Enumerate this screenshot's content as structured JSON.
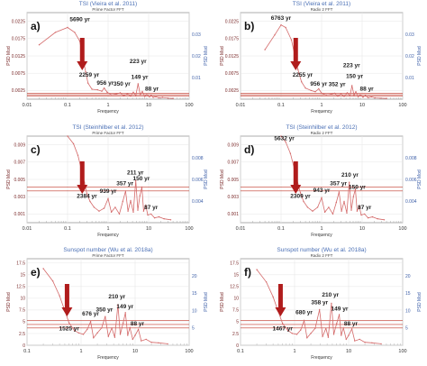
{
  "colors": {
    "series": "#d46a6a",
    "grid": "#e6e6e6",
    "frame": "#999999",
    "refline": "#c0392b",
    "arrow": "#b01c1c",
    "title": "#4a6fb5",
    "axis_text": "#7a2a2a",
    "right_axis_text": "#3d5fa8"
  },
  "chart_data": [
    {
      "type": "line",
      "panel_label": "a)",
      "title": "TSI (Vieira et al. 2011)",
      "subtitle": "Prime Factor FFT",
      "xlabel": "Frequency",
      "ylabel": "PSD Mod",
      "xscale": "log",
      "xlim": [
        0.01,
        100
      ],
      "x_ticks": [
        "0.01",
        "0.1",
        "1",
        "10",
        "100"
      ],
      "ylim": [
        0,
        0.035
      ],
      "y_ticks": [
        "0.0025",
        "0.0075",
        "0.0125",
        "0.0175",
        "0.0225"
      ],
      "right_y_ticks": [
        "0.01",
        "0.02",
        "0.03"
      ],
      "reference_lines": [
        0.0012,
        0.0018,
        0.0024
      ],
      "arrow_x": 0.23,
      "annotations": [
        {
          "text": "5690 yr",
          "x": 0.2,
          "y": 0.0315
        },
        {
          "text": "2259 yr",
          "x": 0.34,
          "y": 0.0092
        },
        {
          "text": "956 yr",
          "x": 0.85,
          "y": 0.0058
        },
        {
          "text": "350 yr",
          "x": 2.2,
          "y": 0.0055
        },
        {
          "text": "223 yr",
          "x": 5.5,
          "y": 0.0145
        },
        {
          "text": "149 yr",
          "x": 6.0,
          "y": 0.0082
        },
        {
          "text": "88 yr",
          "x": 12.0,
          "y": 0.0035
        }
      ],
      "points": [
        [
          0.02,
          0.022
        ],
        [
          0.05,
          0.027
        ],
        [
          0.1,
          0.029
        ],
        [
          0.15,
          0.027
        ],
        [
          0.2,
          0.0235
        ],
        [
          0.28,
          0.011
        ],
        [
          0.32,
          0.0065
        ],
        [
          0.4,
          0.004
        ],
        [
          0.55,
          0.0038
        ],
        [
          0.7,
          0.0032
        ],
        [
          0.8,
          0.0045
        ],
        [
          0.95,
          0.0028
        ],
        [
          1.2,
          0.0018
        ],
        [
          1.6,
          0.0021
        ],
        [
          2,
          0.0026
        ],
        [
          2.4,
          0.0013
        ],
        [
          3,
          0.0022
        ],
        [
          3.6,
          0.0012
        ],
        [
          4.2,
          0.0028
        ],
        [
          4.8,
          0.0014
        ],
        [
          5.5,
          0.0062
        ],
        [
          6.2,
          0.0018
        ],
        [
          7,
          0.0031
        ],
        [
          8,
          0.0011
        ],
        [
          9,
          0.0019
        ],
        [
          10.5,
          0.0009
        ],
        [
          11.5,
          0.0016
        ],
        [
          13,
          0.0007
        ],
        [
          15,
          0.001
        ],
        [
          18,
          0.0005
        ],
        [
          22,
          0.0007
        ],
        [
          30,
          0.0004
        ],
        [
          40,
          0.0003
        ]
      ]
    },
    {
      "type": "line",
      "panel_label": "b)",
      "title": "TSI (Vieira et al. 2011)",
      "subtitle": "Radix 2 FFT",
      "xlabel": "Frequency",
      "ylabel": "PSD Mod",
      "xscale": "log",
      "xlim": [
        0.01,
        100
      ],
      "x_ticks": [
        "0.01",
        "0.1",
        "1",
        "10",
        "100"
      ],
      "ylim": [
        0,
        0.035
      ],
      "y_ticks": [
        "0.0025",
        "0.0075",
        "0.0125",
        "0.0175",
        "0.0225"
      ],
      "right_y_ticks": [
        "0.01",
        "0.02",
        "0.03"
      ],
      "reference_lines": [
        0.0012,
        0.0018,
        0.0024
      ],
      "arrow_x": 0.23,
      "annotations": [
        {
          "text": "6763 yr",
          "x": 0.1,
          "y": 0.032
        },
        {
          "text": "2255 yr",
          "x": 0.34,
          "y": 0.0092
        },
        {
          "text": "956 yr",
          "x": 0.85,
          "y": 0.0055
        },
        {
          "text": "352 yr",
          "x": 2.4,
          "y": 0.0052
        },
        {
          "text": "223 yr",
          "x": 5.5,
          "y": 0.013
        },
        {
          "text": "150 yr",
          "x": 6.5,
          "y": 0.0085
        },
        {
          "text": "88 yr",
          "x": 13.0,
          "y": 0.0035
        }
      ],
      "points": [
        [
          0.04,
          0.02
        ],
        [
          0.07,
          0.026
        ],
        [
          0.1,
          0.03
        ],
        [
          0.13,
          0.029
        ],
        [
          0.18,
          0.024
        ],
        [
          0.26,
          0.012
        ],
        [
          0.32,
          0.007
        ],
        [
          0.4,
          0.0045
        ],
        [
          0.55,
          0.0035
        ],
        [
          0.7,
          0.003
        ],
        [
          0.85,
          0.0042
        ],
        [
          1,
          0.0024
        ],
        [
          1.3,
          0.0017
        ],
        [
          1.7,
          0.002
        ],
        [
          2.1,
          0.0024
        ],
        [
          2.5,
          0.0012
        ],
        [
          3,
          0.0021
        ],
        [
          3.6,
          0.0011
        ],
        [
          4.3,
          0.0026
        ],
        [
          5,
          0.0013
        ],
        [
          5.6,
          0.0055
        ],
        [
          6.3,
          0.0016
        ],
        [
          7,
          0.003
        ],
        [
          8,
          0.001
        ],
        [
          9,
          0.0018
        ],
        [
          10.5,
          0.0008
        ],
        [
          12,
          0.0015
        ],
        [
          14,
          0.0006
        ],
        [
          17,
          0.0009
        ],
        [
          21,
          0.0005
        ],
        [
          28,
          0.0004
        ],
        [
          40,
          0.0003
        ]
      ]
    },
    {
      "type": "line",
      "panel_label": "c)",
      "title": "TSI (Steinhilber et al. 2012)",
      "subtitle": "Prime Factor FFT",
      "xlabel": "Frequency",
      "ylabel": "PSD Mod",
      "xscale": "log",
      "xlim": [
        0.01,
        100
      ],
      "x_ticks": [
        "0.01",
        "0.1",
        "1",
        "10",
        "100"
      ],
      "ylim": [
        0,
        0.009
      ],
      "y_ticks": [
        "0.001",
        "0.003",
        "0.005",
        "0.007",
        "0.009"
      ],
      "right_y_ticks": [
        "0.004",
        "0.006",
        "0.008"
      ],
      "reference_lines": [
        0.0033,
        0.0037
      ],
      "arrow_x": 0.23,
      "annotations": [
        {
          "text": "2384 yr",
          "x": 0.3,
          "y": 0.0026
        },
        {
          "text": "939 yr",
          "x": 1.0,
          "y": 0.0031
        },
        {
          "text": "357 yr",
          "x": 2.6,
          "y": 0.0039
        },
        {
          "text": "211 yr",
          "x": 4.7,
          "y": 0.005
        },
        {
          "text": "150 yr",
          "x": 6.6,
          "y": 0.0044
        },
        {
          "text": "87 yr",
          "x": 11.5,
          "y": 0.0014
        }
      ],
      "points": [
        [
          0.1,
          0.009
        ],
        [
          0.14,
          0.0082
        ],
        [
          0.18,
          0.007
        ],
        [
          0.22,
          0.0055
        ],
        [
          0.26,
          0.0042
        ],
        [
          0.3,
          0.003
        ],
        [
          0.36,
          0.0022
        ],
        [
          0.45,
          0.0016
        ],
        [
          0.6,
          0.0012
        ],
        [
          0.8,
          0.0015
        ],
        [
          1,
          0.0025
        ],
        [
          1.2,
          0.0011
        ],
        [
          1.5,
          0.0016
        ],
        [
          1.9,
          0.0009
        ],
        [
          2.3,
          0.0022
        ],
        [
          2.7,
          0.0033
        ],
        [
          3.1,
          0.0012
        ],
        [
          3.6,
          0.0023
        ],
        [
          4.2,
          0.0011
        ],
        [
          4.8,
          0.0044
        ],
        [
          5.4,
          0.0013
        ],
        [
          6.1,
          0.0028
        ],
        [
          6.8,
          0.0037
        ],
        [
          7.5,
          0.0012
        ],
        [
          8.5,
          0.0018
        ],
        [
          9.5,
          0.0008
        ],
        [
          11.5,
          0.0009
        ],
        [
          14,
          0.0005
        ],
        [
          18,
          0.0006
        ],
        [
          24,
          0.0004
        ],
        [
          35,
          0.0003
        ]
      ]
    },
    {
      "type": "line",
      "panel_label": "d)",
      "title": "TSI (Steinhilber et al. 2012)",
      "subtitle": "Radix 2 FFT",
      "xlabel": "Frequency",
      "ylabel": "PSD Mod",
      "xscale": "log",
      "xlim": [
        0.01,
        100
      ],
      "x_ticks": [
        "0.01",
        "0.1",
        "1",
        "10",
        "100"
      ],
      "ylim": [
        0,
        0.009
      ],
      "y_ticks": [
        "0.001",
        "0.003",
        "0.005",
        "0.007",
        "0.009"
      ],
      "right_y_ticks": [
        "0.004",
        "0.006",
        "0.008"
      ],
      "reference_lines": [
        0.0033,
        0.0037
      ],
      "arrow_x": 0.23,
      "annotations": [
        {
          "text": "5632 yr",
          "x": 0.12,
          "y": 0.0086
        },
        {
          "text": "2309 yr",
          "x": 0.3,
          "y": 0.0026
        },
        {
          "text": "943 yr",
          "x": 1.0,
          "y": 0.0032
        },
        {
          "text": "357 yr",
          "x": 2.6,
          "y": 0.0039
        },
        {
          "text": "210 yr",
          "x": 5.0,
          "y": 0.0048
        },
        {
          "text": "150 yr",
          "x": 7.5,
          "y": 0.0035
        },
        {
          "text": "87 yr",
          "x": 11.5,
          "y": 0.0014
        }
      ],
      "points": [
        [
          0.1,
          0.009
        ],
        [
          0.13,
          0.0084
        ],
        [
          0.17,
          0.0072
        ],
        [
          0.21,
          0.0057
        ],
        [
          0.25,
          0.0044
        ],
        [
          0.3,
          0.0031
        ],
        [
          0.36,
          0.0022
        ],
        [
          0.45,
          0.0016
        ],
        [
          0.6,
          0.0012
        ],
        [
          0.8,
          0.0016
        ],
        [
          1,
          0.0026
        ],
        [
          1.2,
          0.0011
        ],
        [
          1.5,
          0.0016
        ],
        [
          1.9,
          0.0009
        ],
        [
          2.3,
          0.0021
        ],
        [
          2.7,
          0.0032
        ],
        [
          3.1,
          0.0012
        ],
        [
          3.6,
          0.0022
        ],
        [
          4.2,
          0.001
        ],
        [
          4.8,
          0.0042
        ],
        [
          5.4,
          0.0013
        ],
        [
          6.1,
          0.0027
        ],
        [
          6.8,
          0.0035
        ],
        [
          7.5,
          0.0012
        ],
        [
          8.5,
          0.0017
        ],
        [
          9.5,
          0.0008
        ],
        [
          11.5,
          0.0009
        ],
        [
          14,
          0.0005
        ],
        [
          18,
          0.0006
        ],
        [
          24,
          0.0004
        ],
        [
          35,
          0.0003
        ]
      ]
    },
    {
      "type": "line",
      "panel_label": "e)",
      "title": "Sunspot number (Wu et al. 2018a)",
      "subtitle": "Prime Factor FFT",
      "xlabel": "Frequency",
      "ylabel": "PSD Mod",
      "xscale": "log",
      "xlim": [
        0.1,
        100
      ],
      "x_ticks": [
        "0.1",
        "1",
        "10",
        "100"
      ],
      "ylim": [
        0,
        17.5
      ],
      "y_ticks": [
        "0",
        "2.5",
        "5",
        "7.5",
        "10",
        "12.5",
        "15",
        "17.5"
      ],
      "right_y_ticks": [
        "5",
        "10",
        "15",
        "20"
      ],
      "reference_lines": [
        3.5,
        4.2,
        5.0
      ],
      "arrow_x": 0.55,
      "annotations": [
        {
          "text": "1525 yr",
          "x": 0.6,
          "y": 3.0
        },
        {
          "text": "676 yr",
          "x": 1.5,
          "y": 6.0
        },
        {
          "text": "350 yr",
          "x": 2.7,
          "y": 6.8
        },
        {
          "text": "210 yr",
          "x": 4.6,
          "y": 9.5
        },
        {
          "text": "149 yr",
          "x": 6.5,
          "y": 7.5
        },
        {
          "text": "88 yr",
          "x": 11.0,
          "y": 4.0
        }
      ],
      "points": [
        [
          0.2,
          15.5
        ],
        [
          0.3,
          13
        ],
        [
          0.4,
          10
        ],
        [
          0.5,
          7
        ],
        [
          0.6,
          4.5
        ],
        [
          0.75,
          3
        ],
        [
          0.9,
          2.5
        ],
        [
          1.1,
          2.2
        ],
        [
          1.3,
          3.2
        ],
        [
          1.5,
          4.8
        ],
        [
          1.7,
          1.5
        ],
        [
          2,
          2.5
        ],
        [
          2.4,
          3.5
        ],
        [
          2.8,
          5.8
        ],
        [
          3.2,
          1.8
        ],
        [
          3.7,
          3.5
        ],
        [
          4.2,
          1.6
        ],
        [
          4.8,
          8.2
        ],
        [
          5.3,
          2.2
        ],
        [
          6,
          4.5
        ],
        [
          6.6,
          6.6
        ],
        [
          7.3,
          2
        ],
        [
          8,
          3.6
        ],
        [
          9,
          1.2
        ],
        [
          10,
          2
        ],
        [
          11.5,
          3.2
        ],
        [
          13,
          0.9
        ],
        [
          16,
          1.2
        ],
        [
          20,
          0.6
        ],
        [
          27,
          0.5
        ],
        [
          40,
          0.3
        ]
      ]
    },
    {
      "type": "line",
      "panel_label": "f)",
      "title": "Sunspot number (Wu et al. 2018a)",
      "subtitle": "Radix 2 FFT",
      "xlabel": "Frequency",
      "ylabel": "PSD Mod",
      "xscale": "log",
      "xlim": [
        0.1,
        100
      ],
      "x_ticks": [
        "0.1",
        "1",
        "10",
        "100"
      ],
      "ylim": [
        0,
        17.5
      ],
      "y_ticks": [
        "0",
        "2.5",
        "5",
        "7.5",
        "10",
        "12.5",
        "15",
        "17.5"
      ],
      "right_y_ticks": [
        "5",
        "10",
        "15",
        "20"
      ],
      "reference_lines": [
        3.5,
        4.2,
        5.0
      ],
      "arrow_x": 0.55,
      "annotations": [
        {
          "text": "1467 yr",
          "x": 0.6,
          "y": 3.0
        },
        {
          "text": "680 yr",
          "x": 1.5,
          "y": 6.3
        },
        {
          "text": "358 yr",
          "x": 2.9,
          "y": 8.3
        },
        {
          "text": "210 yr",
          "x": 4.6,
          "y": 9.8
        },
        {
          "text": "149 yr",
          "x": 6.8,
          "y": 7.0
        },
        {
          "text": "88 yr",
          "x": 11.0,
          "y": 4.0
        }
      ],
      "points": [
        [
          0.2,
          15.3
        ],
        [
          0.3,
          12.8
        ],
        [
          0.4,
          9.8
        ],
        [
          0.5,
          6.8
        ],
        [
          0.6,
          4.4
        ],
        [
          0.75,
          3
        ],
        [
          0.9,
          2.4
        ],
        [
          1.1,
          2.2
        ],
        [
          1.3,
          3.1
        ],
        [
          1.5,
          5
        ],
        [
          1.7,
          1.5
        ],
        [
          2,
          2.4
        ],
        [
          2.4,
          3.4
        ],
        [
          2.9,
          7.2
        ],
        [
          3.3,
          1.8
        ],
        [
          3.8,
          3.4
        ],
        [
          4.2,
          1.6
        ],
        [
          4.8,
          8.5
        ],
        [
          5.3,
          2.2
        ],
        [
          6,
          4.4
        ],
        [
          6.7,
          6.2
        ],
        [
          7.3,
          2
        ],
        [
          8,
          3.5
        ],
        [
          9,
          1.2
        ],
        [
          10,
          2
        ],
        [
          11.5,
          3.3
        ],
        [
          13,
          0.9
        ],
        [
          16,
          1.2
        ],
        [
          20,
          0.6
        ],
        [
          27,
          0.5
        ],
        [
          40,
          0.3
        ]
      ]
    }
  ]
}
